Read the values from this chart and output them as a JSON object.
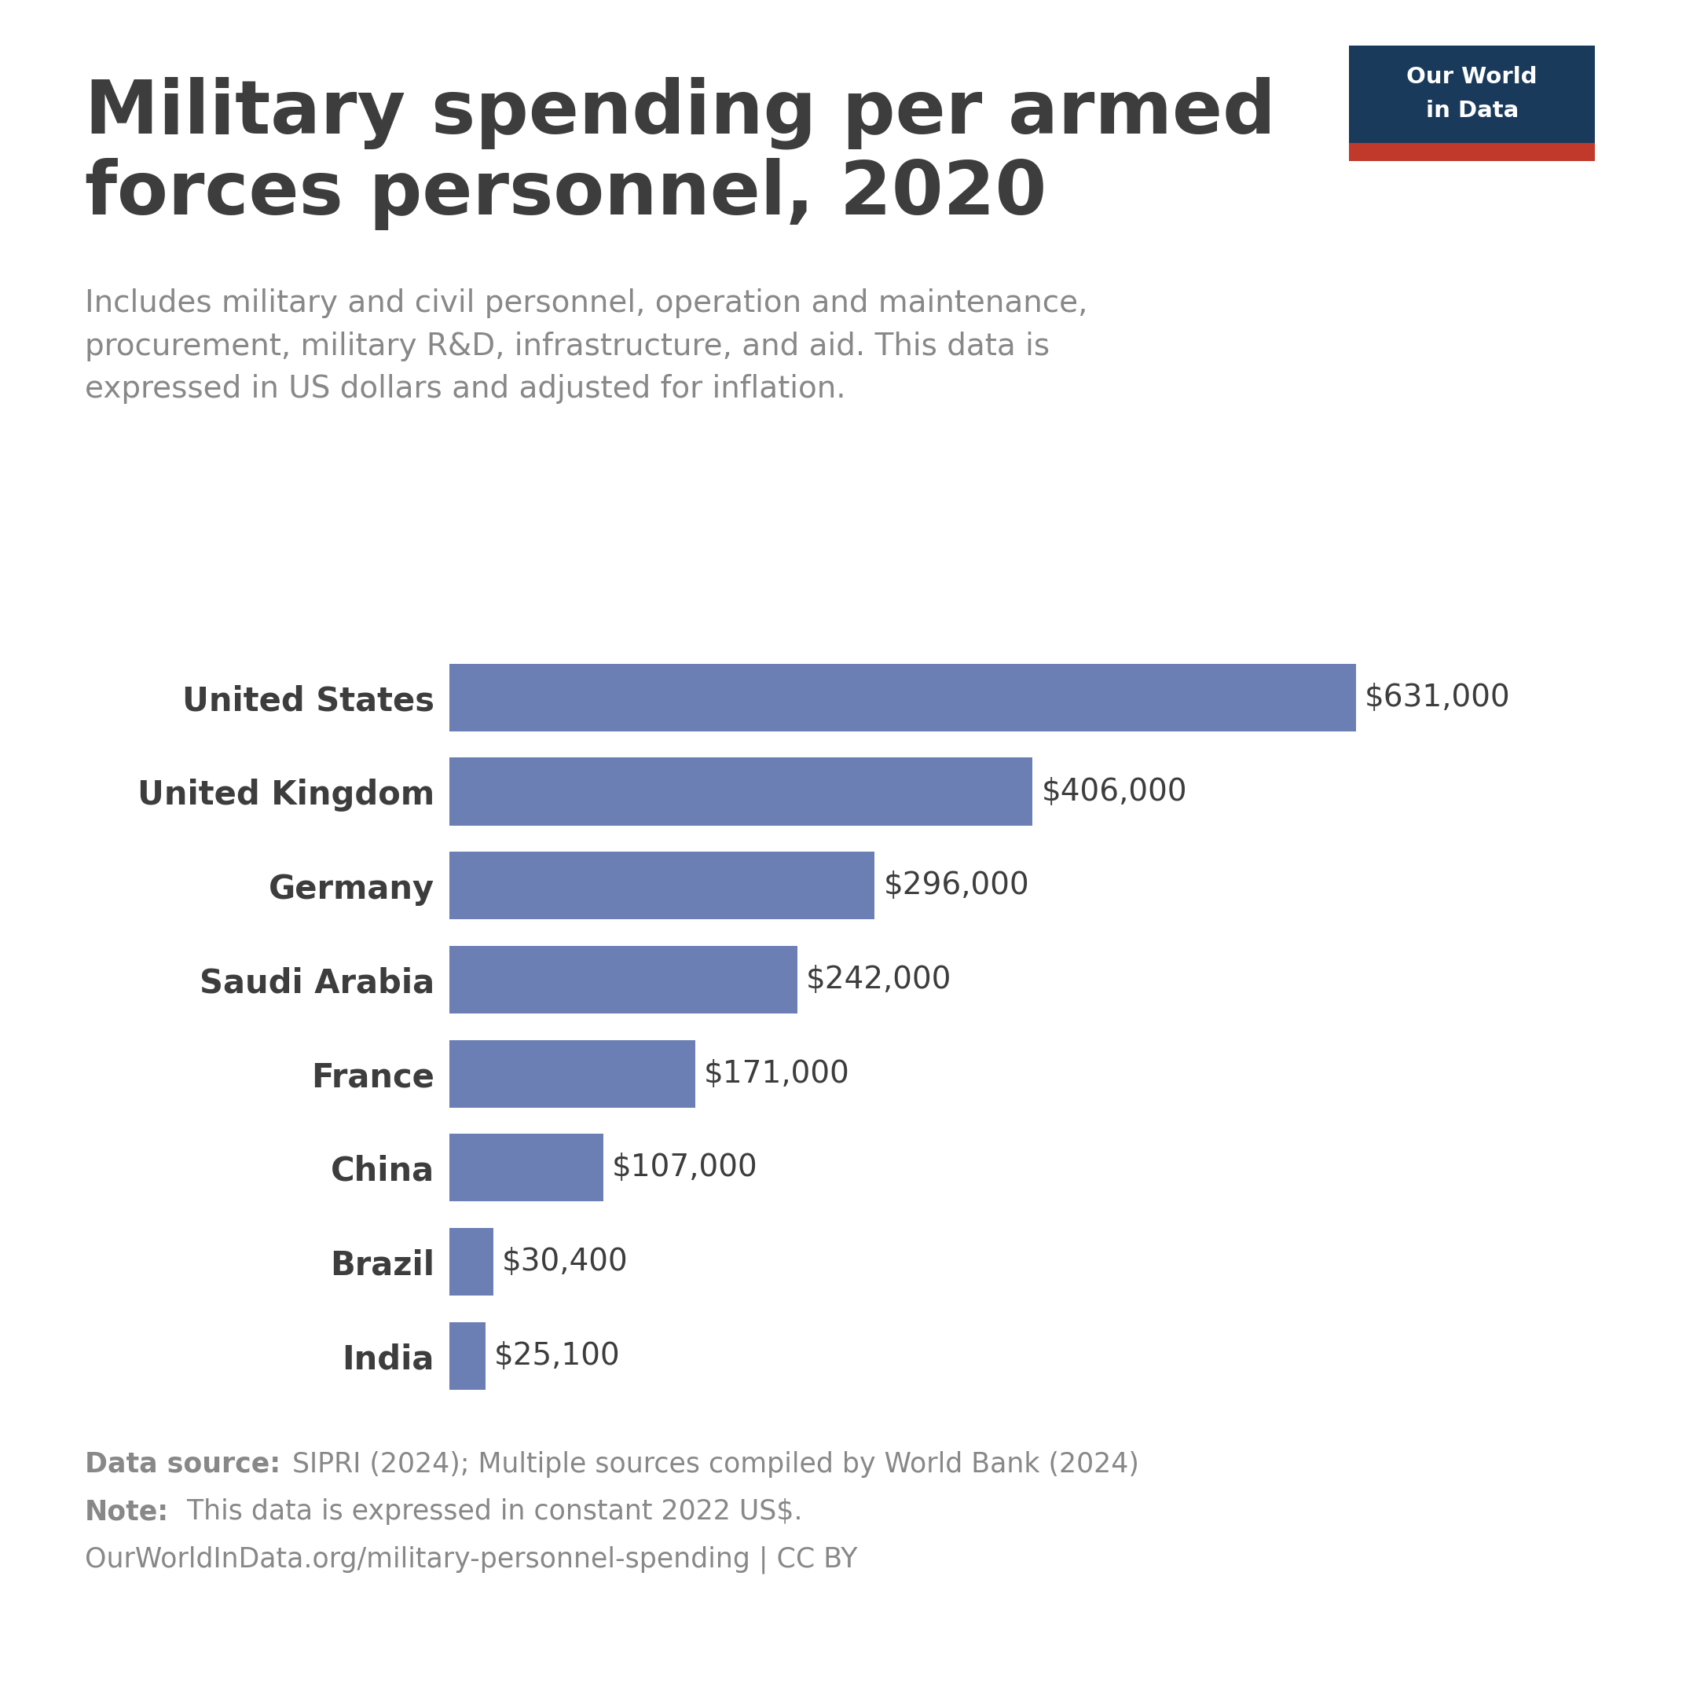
{
  "title": "Military spending per armed\nforces personnel, 2020",
  "subtitle": "Includes military and civil personnel, operation and maintenance,\nprocurement, military R&D, infrastructure, and aid. This data is\nexpressed in US dollars and adjusted for inflation.",
  "countries": [
    "United States",
    "United Kingdom",
    "Germany",
    "Saudi Arabia",
    "France",
    "China",
    "Brazil",
    "India"
  ],
  "values": [
    631000,
    406000,
    296000,
    242000,
    171000,
    107000,
    30400,
    25100
  ],
  "labels": [
    "$631,000",
    "$406,000",
    "$296,000",
    "$242,000",
    "$171,000",
    "$107,000",
    "$30,400",
    "$25,100"
  ],
  "bar_color": "#6b7fb5",
  "background_color": "#ffffff",
  "title_color": "#3d3d3d",
  "subtitle_color": "#888888",
  "label_color": "#3d3d3d",
  "footer_color": "#888888",
  "data_source_bold": "Data source:",
  "data_source_text": " SIPRI (2024); Multiple sources compiled by World Bank (2024)",
  "note_bold": "Note:",
  "note_text": " This data is expressed in constant 2022 US$.",
  "url_text": "OurWorldInData.org/military-personnel-spending | CC BY",
  "logo_bg_color": "#1a3a5c",
  "logo_red_color": "#c0392b",
  "logo_text_line1": "Our World",
  "logo_text_line2": "in Data"
}
